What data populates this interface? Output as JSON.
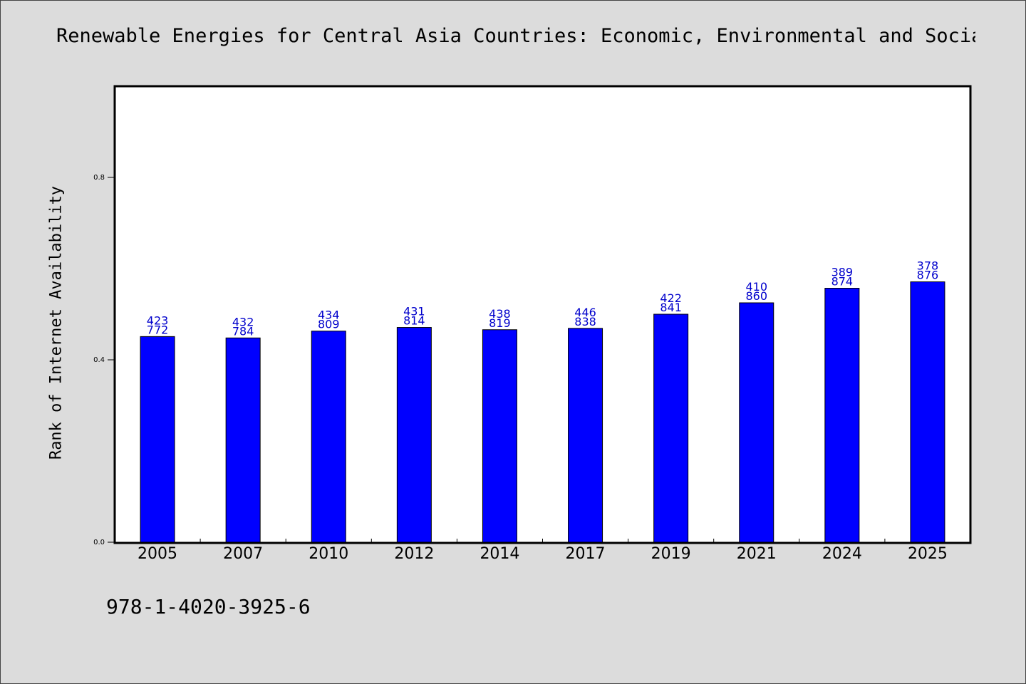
{
  "chart_data": {
    "type": "bar",
    "title": "Renewable Energies for Central Asia Countries: Economic, Environmental and Socia",
    "ylabel": "Rank of Internet Availability",
    "xlabel": "",
    "categories": [
      "2005",
      "2007",
      "2010",
      "2012",
      "2014",
      "2017",
      "2019",
      "2021",
      "2024",
      "2025"
    ],
    "values": [
      0.451,
      0.448,
      0.463,
      0.471,
      0.466,
      0.469,
      0.5,
      0.525,
      0.557,
      0.571
    ],
    "data_labels": [
      [
        "423",
        "772"
      ],
      [
        "432",
        "784"
      ],
      [
        "434",
        "809"
      ],
      [
        "431",
        "814"
      ],
      [
        "438",
        "819"
      ],
      [
        "446",
        "838"
      ],
      [
        "422",
        "841"
      ],
      [
        "410",
        "860"
      ],
      [
        "389",
        "874"
      ],
      [
        "378",
        "876"
      ]
    ],
    "ylim": [
      0,
      1.0
    ],
    "yticks": [
      "0.0",
      "0.4",
      "0.8"
    ],
    "grid": false,
    "bar_color": "#0000ff",
    "label_color": "#0000cc"
  },
  "footnote": "978-1-4020-3925-6"
}
